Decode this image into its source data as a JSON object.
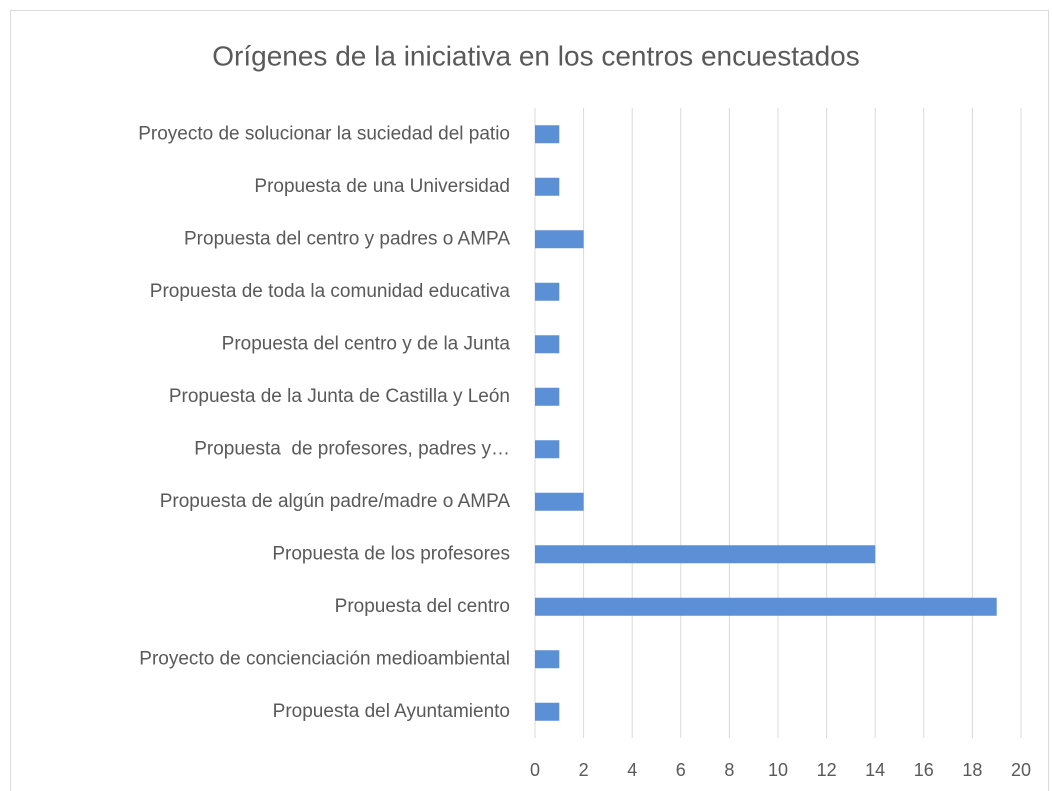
{
  "chart_data": {
    "type": "hbar",
    "title": "Orígenes de la iniciativa en los centros encuestados",
    "categories": [
      "Proyecto de solucionar la suciedad del patio",
      "Propuesta de una Universidad",
      "Propuesta del centro y padres o AMPA",
      "Propuesta de toda la comunidad educativa",
      "Propuesta del centro y de la Junta",
      "Propuesta de la Junta de Castilla y León",
      "Propuesta  de profesores, padres y…",
      "Propuesta de algún padre/madre o AMPA",
      "Propuesta de los profesores",
      "Propuesta del centro",
      "Proyecto de concienciación medioambiental",
      "Propuesta del Ayuntamiento"
    ],
    "values": [
      1,
      1,
      2,
      1,
      1,
      1,
      1,
      2,
      14,
      19,
      1,
      1
    ],
    "color": "#5b8fd6",
    "xlim": [
      0,
      20
    ],
    "xticks": [
      0,
      2,
      4,
      6,
      8,
      10,
      12,
      14,
      16,
      18,
      20
    ],
    "grid": true
  }
}
